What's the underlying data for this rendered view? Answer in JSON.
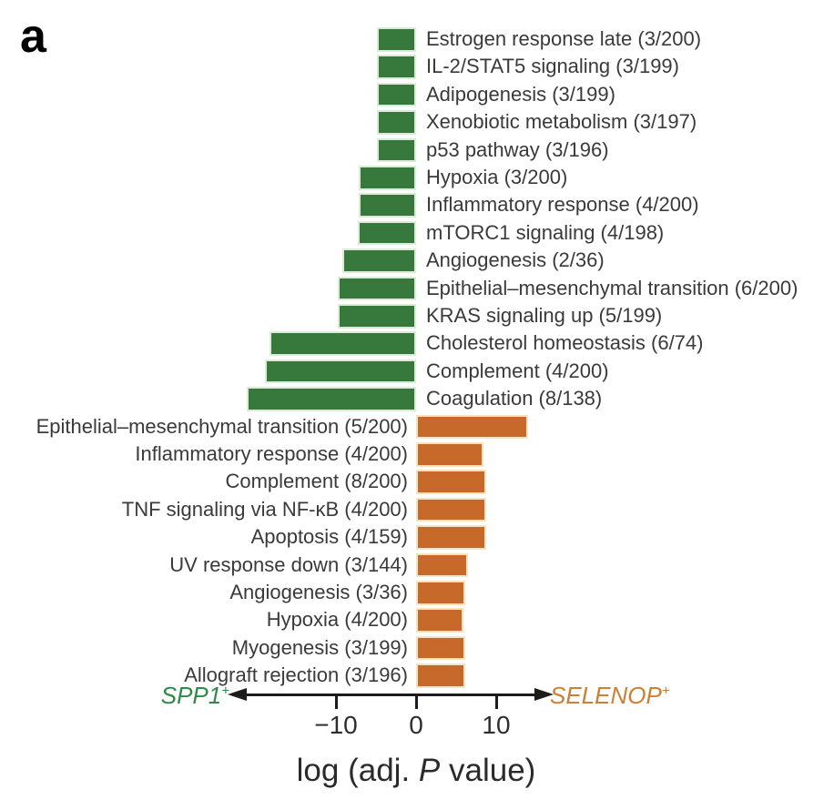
{
  "panel_label": "a",
  "chart_data": {
    "type": "bar",
    "orientation": "horizontal_diverging",
    "grid": false,
    "xlabel": {
      "prefix": "log (adj. ",
      "italic": "P",
      "suffix": " value)"
    },
    "x_ticks": [
      {
        "value": -10,
        "label": "−10"
      },
      {
        "value": 0,
        "label": "0"
      },
      {
        "value": 10,
        "label": "10"
      }
    ],
    "x_range": [
      -22,
      16
    ],
    "negative_group": {
      "gene": "SPP1",
      "sup": "+",
      "bar_color": "#37793c",
      "label_color": "#2e8b47",
      "direction": "left"
    },
    "positive_group": {
      "gene": "SELENOP",
      "sup": "+",
      "bar_color": "#c6692a",
      "label_color": "#cf7f33",
      "direction": "right"
    },
    "rows": [
      {
        "label": "Estrogen response late (3/200)",
        "value": -4.9,
        "group": "SPP1+"
      },
      {
        "label": "IL-2/STAT5 signaling (3/199)",
        "value": -4.9,
        "group": "SPP1+"
      },
      {
        "label": "Adipogenesis (3/199)",
        "value": -4.9,
        "group": "SPP1+"
      },
      {
        "label": "Xenobiotic metabolism (3/197)",
        "value": -4.9,
        "group": "SPP1+"
      },
      {
        "label": "p53 pathway (3/196)",
        "value": -4.9,
        "group": "SPP1+"
      },
      {
        "label": "Hypoxia (3/200)",
        "value": -7.2,
        "group": "SPP1+"
      },
      {
        "label": "Inflammatory response (4/200)",
        "value": -7.2,
        "group": "SPP1+"
      },
      {
        "label": "mTORC1 signaling (4/198)",
        "value": -7.3,
        "group": "SPP1+"
      },
      {
        "label": "Angiogenesis (2/36)",
        "value": -9.2,
        "group": "SPP1+"
      },
      {
        "label": "Epithelial–mesenchymal transition (6/200)",
        "value": -9.8,
        "group": "SPP1+"
      },
      {
        "label": "KRAS signaling up (5/199)",
        "value": -9.8,
        "group": "SPP1+"
      },
      {
        "label": "Cholesterol homeostasis (6/74)",
        "value": -18.3,
        "group": "SPP1+"
      },
      {
        "label": "Complement (4/200)",
        "value": -18.9,
        "group": "SPP1+"
      },
      {
        "label": "Coagulation (8/138)",
        "value": -21.1,
        "group": "SPP1+"
      },
      {
        "label": "Epithelial–mesenchymal transition (5/200)",
        "value": 14.0,
        "group": "SELENOP+"
      },
      {
        "label": "Inflammatory response (4/200)",
        "value": 8.4,
        "group": "SELENOP+"
      },
      {
        "label": "Complement (8/200)",
        "value": 8.7,
        "group": "SELENOP+"
      },
      {
        "label": "TNF signaling via NF-κB (4/200)",
        "value": 8.7,
        "group": "SELENOP+"
      },
      {
        "label": "Apoptosis (4/159)",
        "value": 8.7,
        "group": "SELENOP+"
      },
      {
        "label": "UV response down (3/144)",
        "value": 6.5,
        "group": "SELENOP+"
      },
      {
        "label": "Angiogenesis (3/36)",
        "value": 6.1,
        "group": "SELENOP+"
      },
      {
        "label": "Hypoxia (4/200)",
        "value": 5.9,
        "group": "SELENOP+"
      },
      {
        "label": "Myogenesis (3/199)",
        "value": 6.1,
        "group": "SELENOP+"
      },
      {
        "label": "Allograft rejection (3/196)",
        "value": 6.1,
        "group": "SELENOP+"
      }
    ]
  }
}
